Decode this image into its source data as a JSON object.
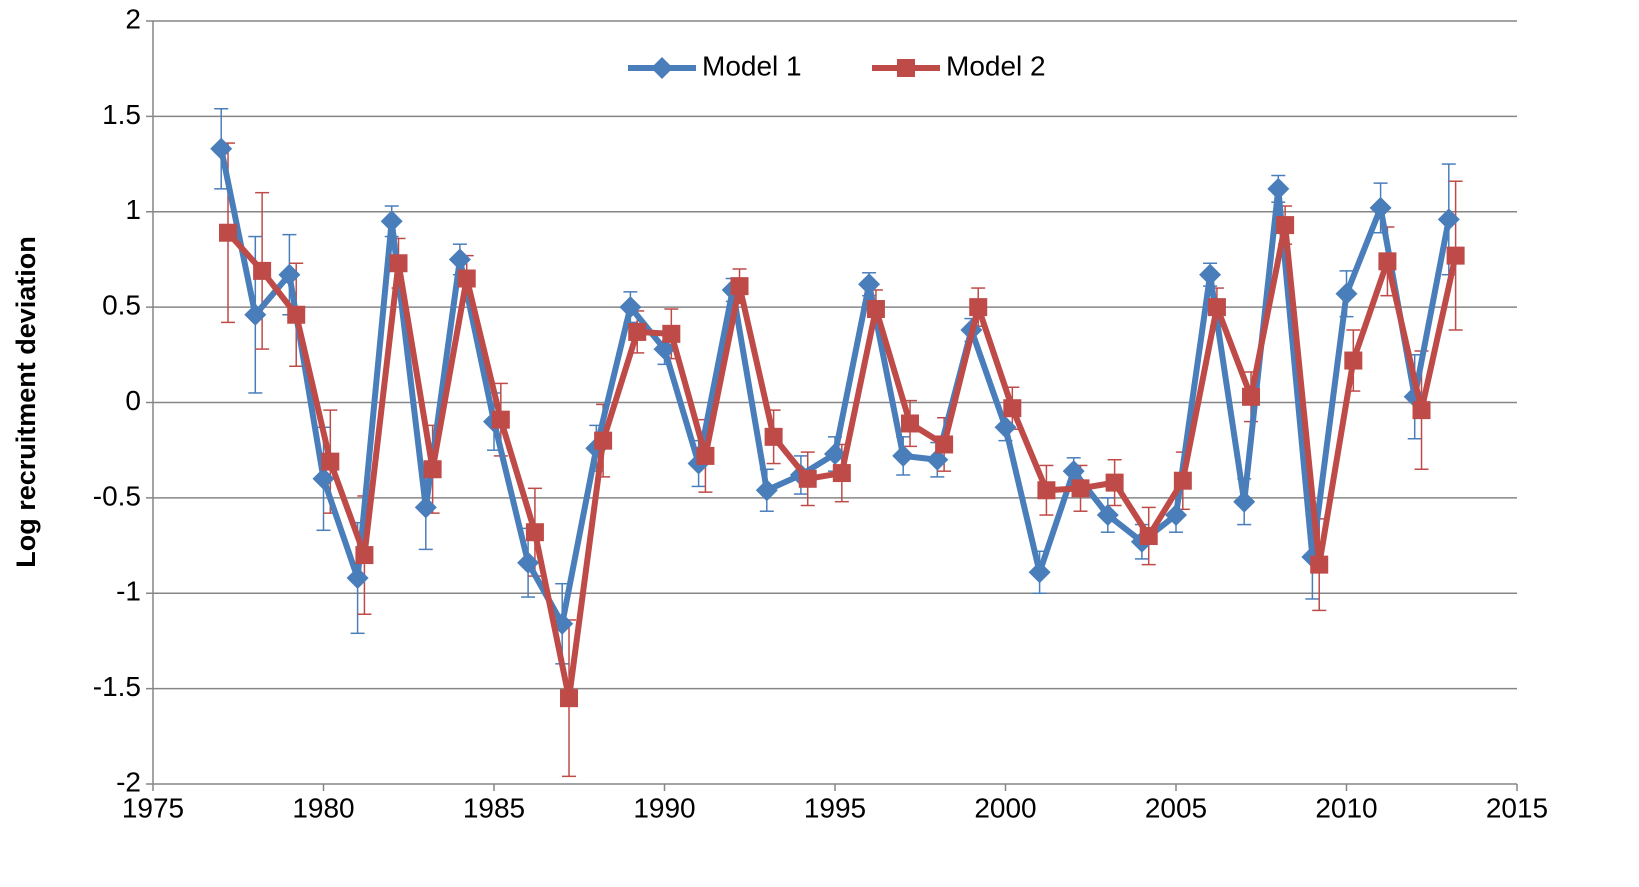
{
  "chart_data": {
    "type": "line",
    "ylabel": "Log recruitment deviation",
    "xlim": [
      1975,
      2015
    ],
    "xticks": [
      1975,
      1980,
      1985,
      1990,
      1995,
      2000,
      2005,
      2010,
      2015
    ],
    "ylim": [
      -2,
      2
    ],
    "yticks": [
      -2,
      -1.5,
      -1,
      -0.5,
      0,
      0.5,
      1,
      1.5,
      2
    ],
    "grid": true,
    "legend": "top",
    "series": [
      {
        "name": "Model 1",
        "color": "#4a7ebb",
        "marker": "diamond",
        "x": [
          1977,
          1978,
          1979,
          1980,
          1981,
          1982,
          1983,
          1984,
          1985,
          1986,
          1987,
          1988,
          1989,
          1990,
          1991,
          1992,
          1993,
          1994,
          1995,
          1996,
          1997,
          1998,
          1999,
          2000,
          2001,
          2002,
          2003,
          2004,
          2005,
          2006,
          2007,
          2008,
          2009,
          2010,
          2011,
          2012,
          2013
        ],
        "values": [
          1.33,
          0.46,
          0.67,
          -0.4,
          -0.92,
          0.95,
          -0.55,
          0.75,
          -0.1,
          -0.84,
          -1.16,
          -0.24,
          0.5,
          0.28,
          -0.32,
          0.59,
          -0.46,
          -0.38,
          -0.27,
          0.62,
          -0.28,
          -0.3,
          0.38,
          -0.13,
          -0.89,
          -0.36,
          -0.59,
          -0.73,
          -0.59,
          0.67,
          -0.52,
          1.12,
          -0.81,
          0.57,
          1.02,
          0.03,
          0.96
        ],
        "errors": [
          0.21,
          0.41,
          0.21,
          0.27,
          0.29,
          0.08,
          0.22,
          0.08,
          0.15,
          0.18,
          0.21,
          0.12,
          0.08,
          0.08,
          0.12,
          0.06,
          0.11,
          0.1,
          0.09,
          0.06,
          0.1,
          0.09,
          0.06,
          0.07,
          0.11,
          0.07,
          0.09,
          0.09,
          0.09,
          0.06,
          0.12,
          0.07,
          0.22,
          0.12,
          0.13,
          0.22,
          0.29
        ]
      },
      {
        "name": "Model 2",
        "color": "#be4b48",
        "marker": "square",
        "x": [
          1977.2,
          1978.2,
          1979.2,
          1980.2,
          1981.2,
          1982.2,
          1983.2,
          1984.2,
          1985.2,
          1986.2,
          1987.2,
          1988.2,
          1989.2,
          1990.2,
          1991.2,
          1992.2,
          1993.2,
          1994.2,
          1995.2,
          1996.2,
          1997.2,
          1998.2,
          1999.2,
          2000.2,
          2001.2,
          2002.2,
          2003.2,
          2004.2,
          2005.2,
          2006.2,
          2007.2,
          2008.2,
          2009.2,
          2010.2,
          2011.2,
          2012.2,
          2013.2
        ],
        "values": [
          0.89,
          0.69,
          0.46,
          -0.31,
          -0.8,
          0.73,
          -0.35,
          0.65,
          -0.09,
          -0.68,
          -1.55,
          -0.2,
          0.37,
          0.36,
          -0.28,
          0.61,
          -0.18,
          -0.4,
          -0.37,
          0.49,
          -0.11,
          -0.22,
          0.5,
          -0.03,
          -0.46,
          -0.45,
          -0.42,
          -0.7,
          -0.41,
          0.5,
          0.03,
          0.93,
          -0.85,
          0.22,
          0.74,
          -0.04,
          0.77
        ],
        "errors": [
          0.47,
          0.41,
          0.27,
          0.27,
          0.31,
          0.13,
          0.23,
          0.12,
          0.19,
          0.23,
          0.41,
          0.19,
          0.11,
          0.13,
          0.19,
          0.09,
          0.14,
          0.14,
          0.15,
          0.1,
          0.12,
          0.14,
          0.1,
          0.11,
          0.13,
          0.12,
          0.12,
          0.15,
          0.15,
          0.1,
          0.13,
          0.1,
          0.24,
          0.16,
          0.18,
          0.31,
          0.39
        ]
      }
    ]
  }
}
